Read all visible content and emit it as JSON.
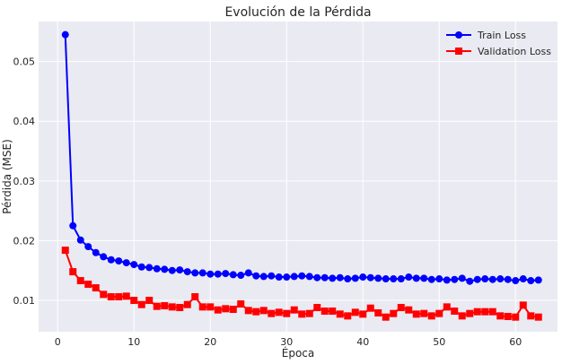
{
  "chart_data": {
    "type": "line",
    "title": "Evolución de la Pérdida",
    "xlabel": "Época",
    "ylabel": "Pérdida (MSE)",
    "xlim": [
      -2.5,
      65.5
    ],
    "ylim": [
      0.00475,
      0.0567
    ],
    "xticks": [
      0,
      10,
      20,
      30,
      40,
      50,
      60
    ],
    "yticks": [
      0.01,
      0.02,
      0.03,
      0.04,
      0.05
    ],
    "ytick_labels": [
      "0.01",
      "0.02",
      "0.03",
      "0.04",
      "0.05"
    ],
    "grid": true,
    "legend": "top-right",
    "x": [
      1,
      2,
      3,
      4,
      5,
      6,
      7,
      8,
      9,
      10,
      11,
      12,
      13,
      14,
      15,
      16,
      17,
      18,
      19,
      20,
      21,
      22,
      23,
      24,
      25,
      26,
      27,
      28,
      29,
      30,
      31,
      32,
      33,
      34,
      35,
      36,
      37,
      38,
      39,
      40,
      41,
      42,
      43,
      44,
      45,
      46,
      47,
      48,
      49,
      50,
      51,
      52,
      53,
      54,
      55,
      56,
      57,
      58,
      59,
      60,
      61,
      62,
      63
    ],
    "series": [
      {
        "name": "Train Loss",
        "color": "#0000ff",
        "marker": "circle",
        "values": [
          0.0545,
          0.0225,
          0.0201,
          0.019,
          0.018,
          0.0173,
          0.0168,
          0.0166,
          0.0163,
          0.016,
          0.0156,
          0.0155,
          0.0153,
          0.0152,
          0.015,
          0.0151,
          0.0148,
          0.0146,
          0.0146,
          0.0144,
          0.0144,
          0.0145,
          0.0143,
          0.0142,
          0.0146,
          0.0141,
          0.014,
          0.0141,
          0.0139,
          0.0139,
          0.014,
          0.0141,
          0.014,
          0.0138,
          0.0138,
          0.0137,
          0.0138,
          0.0136,
          0.0137,
          0.0139,
          0.0138,
          0.0137,
          0.0136,
          0.0136,
          0.0136,
          0.0139,
          0.0137,
          0.0137,
          0.0135,
          0.0136,
          0.0134,
          0.0135,
          0.0137,
          0.0132,
          0.0135,
          0.0136,
          0.0135,
          0.0136,
          0.0135,
          0.0133,
          0.0136,
          0.0133,
          0.0134
        ]
      },
      {
        "name": "Validation Loss",
        "color": "#ff0000",
        "marker": "square",
        "values": [
          0.0184,
          0.0148,
          0.0133,
          0.0127,
          0.0121,
          0.011,
          0.0106,
          0.0106,
          0.0107,
          0.01,
          0.0093,
          0.01,
          0.009,
          0.0091,
          0.0089,
          0.0088,
          0.0093,
          0.0106,
          0.0089,
          0.0089,
          0.0084,
          0.0086,
          0.0085,
          0.0094,
          0.0083,
          0.0081,
          0.0083,
          0.0078,
          0.008,
          0.0078,
          0.0084,
          0.0077,
          0.0078,
          0.0088,
          0.0082,
          0.0082,
          0.0077,
          0.0074,
          0.008,
          0.0077,
          0.0087,
          0.0079,
          0.0072,
          0.0078,
          0.0088,
          0.0084,
          0.0077,
          0.0078,
          0.0074,
          0.0078,
          0.0089,
          0.0082,
          0.0074,
          0.0078,
          0.0081,
          0.0081,
          0.0081,
          0.0074,
          0.0073,
          0.0072,
          0.0092,
          0.0074,
          0.0072
        ]
      }
    ]
  }
}
